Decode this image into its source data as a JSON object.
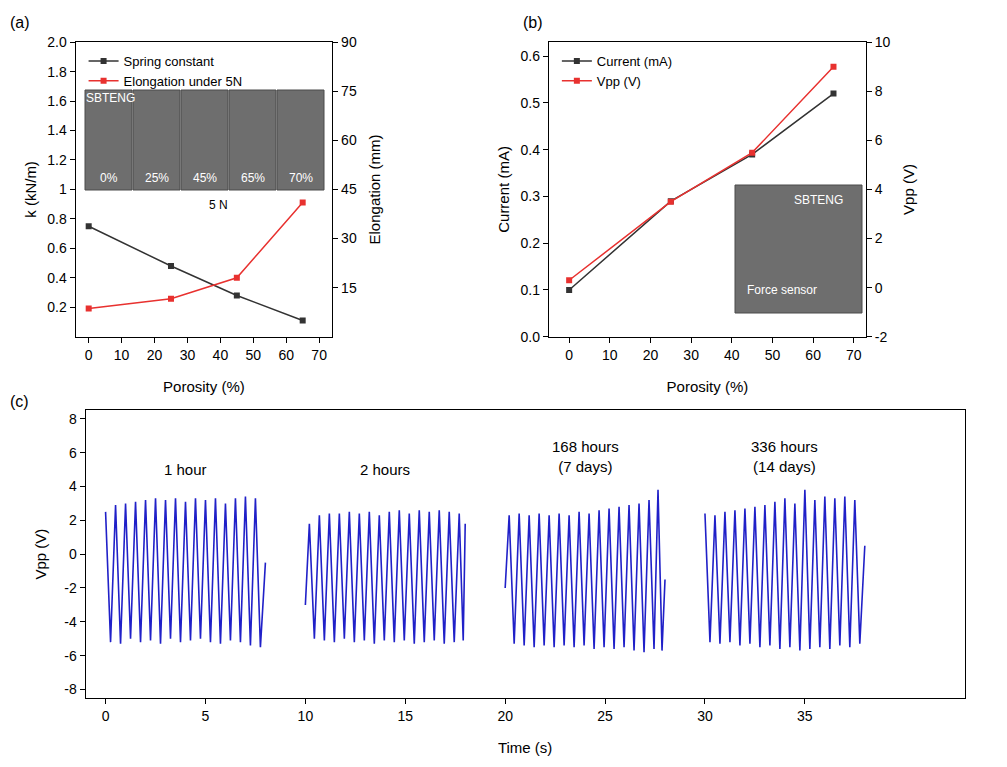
{
  "chart_data": [
    {
      "type": "line",
      "label": "(a)",
      "x_label": "Porosity (%)",
      "y_label": "k (kN/m)",
      "y2_label": "Elongation (mm)",
      "x": [
        0,
        25,
        45,
        65
      ],
      "series": [
        {
          "name": "Spring constant",
          "color": "#333333",
          "marker": "square",
          "values": [
            0.75,
            0.48,
            0.28,
            0.11
          ]
        },
        {
          "name": "Elongation under 5N",
          "color": "#e8312f",
          "marker": "square",
          "axis": "y2",
          "values": [
            8.6,
            11.6,
            18,
            41
          ]
        }
      ],
      "xlim": [
        -4,
        74
      ],
      "xticks": [
        0,
        10,
        20,
        30,
        40,
        50,
        60,
        70
      ],
      "ylim": [
        0,
        2.0
      ],
      "yticks": [
        0.2,
        0.4,
        0.6,
        0.8,
        1.0,
        1.2,
        1.4,
        1.6,
        1.8,
        {
          "value": 2.0,
          "label": "2.0"
        }
      ],
      "y2lim": [
        0,
        90
      ],
      "y2ticks": [
        15,
        30,
        45,
        60,
        75,
        90
      ],
      "grid": false,
      "legend": "top left",
      "annotations": [
        "SBTENG",
        "0%",
        "25%",
        "45%",
        "65%",
        "70%",
        "5 N"
      ]
    },
    {
      "type": "line",
      "label": "(b)",
      "x_label": "Porosity (%)",
      "y_label": "Current (mA)",
      "y2_label": "Vpp (V)",
      "x": [
        0,
        25,
        45,
        65
      ],
      "series": [
        {
          "name": "Current (mA)",
          "color": "#333333",
          "marker": "square",
          "values": [
            0.1,
            0.29,
            0.39,
            0.52
          ]
        },
        {
          "name": "Vpp (V)",
          "color": "#e8312f",
          "marker": "square",
          "axis": "y2",
          "values": [
            0.3,
            3.5,
            5.5,
            9.0
          ]
        }
      ],
      "xlim": [
        -5,
        73
      ],
      "xticks": [
        0,
        10,
        20,
        30,
        40,
        50,
        60,
        70
      ],
      "ylim": [
        0,
        0.63
      ],
      "yticks": [
        {
          "value": 0,
          "label": "0.0"
        },
        0.1,
        0.2,
        0.3,
        0.4,
        0.5,
        0.6
      ],
      "y2lim": [
        -2,
        10
      ],
      "y2ticks": [
        -2,
        0,
        2,
        4,
        6,
        8,
        10
      ],
      "grid": false,
      "legend": "top left",
      "annotations": [
        "SBTENG",
        "Force sensor"
      ]
    },
    {
      "type": "line",
      "label": "(c)",
      "x_label": "Time (s)",
      "y_label": "Vpp (V)",
      "x": [
        0,
        0.25,
        0.5,
        0.75,
        1,
        1.25,
        1.5,
        1.75,
        2,
        2.25,
        2.5,
        2.75,
        3,
        3.25,
        3.5,
        3.75,
        4,
        4.25,
        4.5,
        4.75,
        5,
        5.25,
        5.5,
        5.75,
        6,
        6.25,
        6.5,
        6.75,
        7,
        7.25,
        7.5,
        7.75,
        8,
        9,
        10.0,
        10.2,
        10.45,
        10.7,
        10.95,
        11.2,
        11.45,
        11.7,
        11.95,
        12.2,
        12.45,
        12.7,
        12.95,
        13.2,
        13.45,
        13.7,
        13.95,
        14.2,
        14.45,
        14.7,
        14.95,
        15.2,
        15.45,
        15.7,
        15.95,
        16.2,
        16.45,
        16.7,
        16.95,
        17.2,
        17.45,
        17.7,
        17.9,
        18.0,
        19,
        20.0,
        20.2,
        20.45,
        20.7,
        20.95,
        21.2,
        21.45,
        21.7,
        21.95,
        22.2,
        22.45,
        22.7,
        22.95,
        23.2,
        23.45,
        23.7,
        23.95,
        24.2,
        24.45,
        24.7,
        24.95,
        25.2,
        25.45,
        25.7,
        25.95,
        26.2,
        26.45,
        26.7,
        26.95,
        27.2,
        27.45,
        27.65,
        27.85,
        28.0,
        29,
        30,
        30.25,
        30.5,
        30.75,
        31,
        31.25,
        31.5,
        31.75,
        32,
        32.25,
        32.5,
        32.75,
        33,
        33.25,
        33.5,
        33.75,
        34,
        34.25,
        34.5,
        34.75,
        35,
        35.25,
        35.5,
        35.75,
        36,
        36.25,
        36.5,
        36.75,
        37,
        37.25,
        37.5,
        37.75,
        38
      ],
      "series": [
        {
          "name": "Vpp (V)",
          "color": "#2020c8",
          "values": [
            2.5,
            -5.2,
            2.9,
            -5.3,
            3.0,
            -5.0,
            3.1,
            -5.2,
            3.2,
            -5.1,
            3.3,
            -5.3,
            3.2,
            -5.0,
            3.3,
            -5.2,
            3.1,
            -5.1,
            3.3,
            -5.0,
            3.2,
            -5.2,
            3.3,
            -5.3,
            3.0,
            -5.1,
            3.3,
            -5.2,
            3.4,
            -5.4,
            3.3,
            -5.5,
            -0.5,
            null,
            -3.0,
            1.8,
            -5.0,
            2.3,
            -5.1,
            2.4,
            -5.2,
            2.4,
            -5.0,
            2.5,
            -5.2,
            2.4,
            -5.1,
            2.5,
            -5.3,
            2.3,
            -5.1,
            2.5,
            -5.2,
            2.6,
            -5.1,
            2.4,
            -5.3,
            2.6,
            -5.2,
            2.5,
            -5.1,
            2.6,
            -5.3,
            2.5,
            -5.2,
            2.4,
            -5.1,
            1.8,
            null,
            -2.0,
            2.3,
            -5.3,
            2.4,
            -5.4,
            2.3,
            -5.5,
            2.4,
            -5.4,
            2.3,
            -5.5,
            2.4,
            -5.4,
            2.3,
            -5.5,
            2.5,
            -5.4,
            2.4,
            -5.6,
            2.6,
            -5.5,
            2.7,
            -5.6,
            2.8,
            -5.5,
            2.9,
            -5.7,
            3.0,
            -5.8,
            3.2,
            -5.6,
            3.8,
            -5.7,
            -1.5,
            null,
            2.4,
            -5.2,
            2.3,
            -5.3,
            2.5,
            -5.2,
            2.6,
            -5.4,
            2.7,
            -5.3,
            2.8,
            -5.5,
            2.9,
            -5.4,
            3.1,
            -5.6,
            3.3,
            -5.5,
            3.0,
            -5.7,
            3.8,
            -5.6,
            3.2,
            -5.5,
            3.4,
            -5.6,
            3.3,
            -5.4,
            3.4,
            -5.5,
            3.2,
            -5.3,
            0.5
          ]
        }
      ],
      "xlim": [
        -1,
        43
      ],
      "xticks": [
        0,
        5,
        10,
        15,
        20,
        25,
        30,
        35
      ],
      "ylim": [
        -8.5,
        8.5
      ],
      "yticks": [
        -8,
        -6,
        -4,
        -2,
        0,
        2,
        4,
        6,
        8
      ],
      "grid": false,
      "annotations": [
        "1 hour",
        "2 hours",
        "168 hours\n(7 days)",
        "336 hours\n(14 days)"
      ]
    }
  ]
}
